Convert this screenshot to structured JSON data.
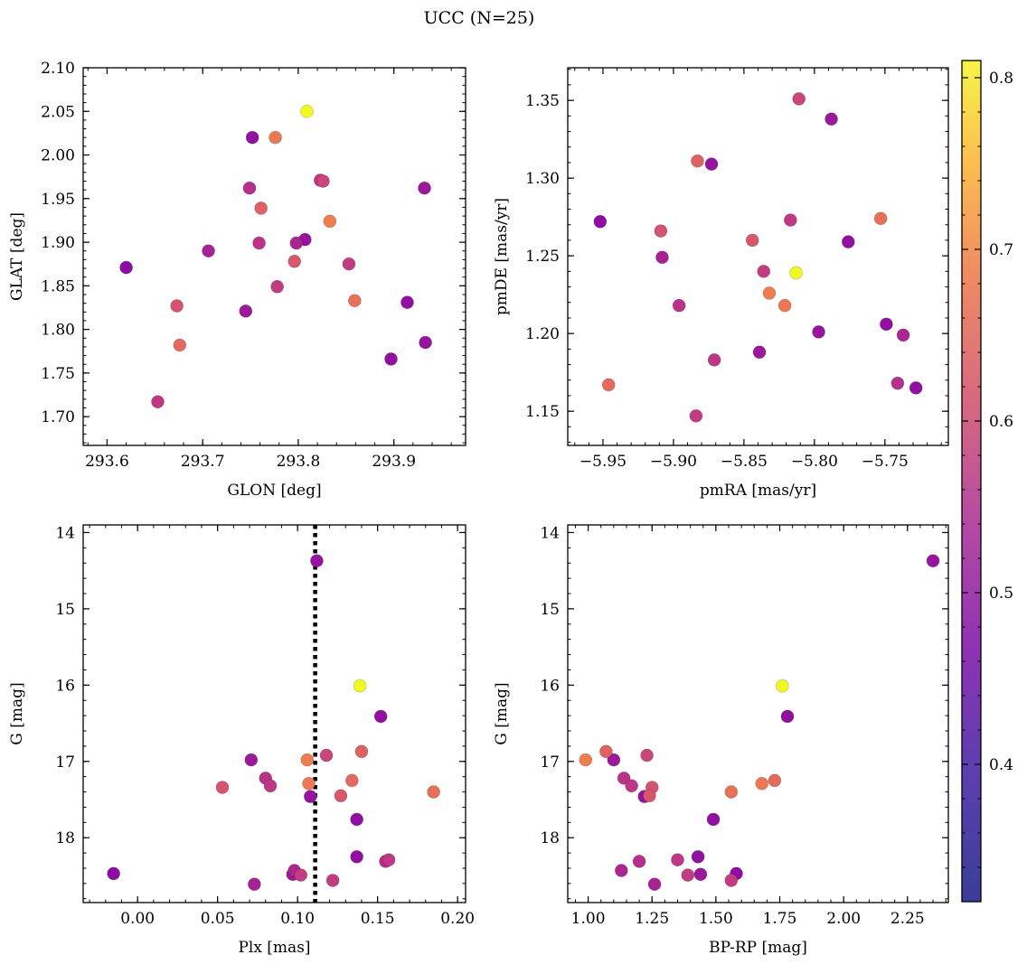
{
  "figure": {
    "title": "UCC (N=25)"
  },
  "chart_data": [
    {
      "type": "scatter",
      "xlabel": "GLON [deg]",
      "ylabel": "GLAT [deg]",
      "xlim": [
        293.575,
        293.975
      ],
      "ylim": [
        1.667,
        2.1
      ],
      "xticks": [
        293.6,
        293.7,
        293.8,
        293.9
      ],
      "xtick_labels": [
        "293.6",
        "293.7",
        "293.8",
        "293.9"
      ],
      "yticks": [
        1.7,
        1.75,
        1.8,
        1.85,
        1.9,
        1.95,
        2.0,
        2.05,
        2.1
      ],
      "ytick_labels": [
        "1.70",
        "1.75",
        "1.80",
        "1.85",
        "1.90",
        "1.95",
        "2.00",
        "2.05",
        "2.10"
      ],
      "y_inverted": false,
      "grid": false
    },
    {
      "type": "scatter",
      "xlabel": "pmRA [mas/yr]",
      "ylabel": "pmDE [mas/yr]",
      "xlim": [
        -5.975,
        -5.705
      ],
      "ylim": [
        1.128,
        1.371
      ],
      "xticks": [
        -5.95,
        -5.9,
        -5.85,
        -5.8,
        -5.75
      ],
      "xtick_labels": [
        "−5.95",
        "−5.90",
        "−5.85",
        "−5.80",
        "−5.75"
      ],
      "yticks": [
        1.15,
        1.2,
        1.25,
        1.3,
        1.35
      ],
      "ytick_labels": [
        "1.15",
        "1.20",
        "1.25",
        "1.30",
        "1.35"
      ],
      "y_inverted": false,
      "grid": false
    },
    {
      "type": "scatter",
      "xlabel": "Plx [mas]",
      "ylabel": "G [mag]",
      "xlim": [
        -0.034,
        0.205
      ],
      "ylim": [
        18.85,
        13.9
      ],
      "xticks": [
        0.0,
        0.05,
        0.1,
        0.15,
        0.2
      ],
      "xtick_labels": [
        "0.00",
        "0.05",
        "0.10",
        "0.15",
        "0.20"
      ],
      "yticks": [
        14,
        15,
        16,
        17,
        18
      ],
      "ytick_labels": [
        "14",
        "15",
        "16",
        "17",
        "18"
      ],
      "y_inverted": true,
      "vline": {
        "x": 0.111,
        "style": "dotted",
        "color": "#000000"
      },
      "grid": false
    },
    {
      "type": "scatter",
      "xlabel": "BP-RP [mag]",
      "ylabel": "G [mag]",
      "xlim": [
        0.92,
        2.41
      ],
      "ylim": [
        18.85,
        13.9
      ],
      "xticks": [
        1.0,
        1.25,
        1.5,
        1.75,
        2.0,
        2.25
      ],
      "xtick_labels": [
        "1.00",
        "1.25",
        "1.50",
        "1.75",
        "2.00",
        "2.25"
      ],
      "yticks": [
        14,
        15,
        16,
        17,
        18
      ],
      "ytick_labels": [
        "14",
        "15",
        "16",
        "17",
        "18"
      ],
      "y_inverted": true,
      "grid": false
    }
  ],
  "stars": [
    {
      "glon": 293.62,
      "glat": 1.871,
      "pmra": -5.952,
      "pmde": 1.272,
      "plx": -0.015,
      "g": 18.47,
      "bprp": 1.58,
      "c": 0.35
    },
    {
      "glon": 293.653,
      "glat": 1.717,
      "pmra": -5.871,
      "pmde": 1.183,
      "plx": 0.083,
      "g": 17.32,
      "bprp": 1.17,
      "c": 0.45
    },
    {
      "glon": 293.673,
      "glat": 1.827,
      "pmra": -5.909,
      "pmde": 1.266,
      "plx": 0.053,
      "g": 17.34,
      "bprp": 1.25,
      "c": 0.51
    },
    {
      "glon": 293.676,
      "glat": 1.782,
      "pmra": -5.946,
      "pmde": 1.167,
      "plx": 0.134,
      "g": 17.25,
      "bprp": 1.73,
      "c": 0.56
    },
    {
      "glon": 293.706,
      "glat": 1.89,
      "pmra": -5.908,
      "pmde": 1.249,
      "plx": 0.073,
      "g": 18.61,
      "bprp": 1.26,
      "c": 0.4
    },
    {
      "glon": 293.745,
      "glat": 1.821,
      "pmra": -5.839,
      "pmde": 1.188,
      "plx": 0.071,
      "g": 16.98,
      "bprp": 1.1,
      "c": 0.38
    },
    {
      "glon": 293.749,
      "glat": 1.962,
      "pmra": -5.741,
      "pmde": 1.168,
      "plx": 0.155,
      "g": 18.31,
      "bprp": 1.2,
      "c": 0.43
    },
    {
      "glon": 293.752,
      "glat": 2.02,
      "pmra": -5.728,
      "pmde": 1.165,
      "plx": 0.137,
      "g": 17.76,
      "bprp": 1.49,
      "c": 0.36
    },
    {
      "glon": 293.759,
      "glat": 1.899,
      "pmra": -5.896,
      "pmde": 1.218,
      "plx": 0.08,
      "g": 17.22,
      "bprp": 1.14,
      "c": 0.44
    },
    {
      "glon": 293.761,
      "glat": 1.939,
      "pmra": -5.883,
      "pmde": 1.311,
      "plx": 0.14,
      "g": 16.87,
      "bprp": 1.07,
      "c": 0.54
    },
    {
      "glon": 293.776,
      "glat": 2.02,
      "pmra": -5.821,
      "pmde": 1.218,
      "plx": 0.107,
      "g": 17.29,
      "bprp": 1.68,
      "c": 0.59
    },
    {
      "glon": 293.778,
      "glat": 1.849,
      "pmra": -5.836,
      "pmde": 1.24,
      "plx": 0.102,
      "g": 18.49,
      "bprp": 1.39,
      "c": 0.46
    },
    {
      "glon": 293.796,
      "glat": 1.878,
      "pmra": -5.844,
      "pmde": 1.26,
      "plx": 0.127,
      "g": 17.45,
      "bprp": 1.24,
      "c": 0.52
    },
    {
      "glon": 293.798,
      "glat": 1.899,
      "pmra": -5.737,
      "pmde": 1.199,
      "plx": 0.098,
      "g": 18.43,
      "bprp": 1.13,
      "c": 0.41
    },
    {
      "glon": 293.807,
      "glat": 1.903,
      "pmra": -5.797,
      "pmde": 1.201,
      "plx": 0.108,
      "g": 17.46,
      "bprp": 1.22,
      "c": 0.37
    },
    {
      "glon": 293.809,
      "glat": 2.05,
      "pmra": -5.813,
      "pmde": 1.239,
      "plx": 0.139,
      "g": 16.01,
      "bprp": 1.76,
      "c": 0.81
    },
    {
      "glon": 293.823,
      "glat": 1.971,
      "pmra": -5.817,
      "pmde": 1.273,
      "plx": 0.157,
      "g": 18.29,
      "bprp": 1.35,
      "c": 0.45
    },
    {
      "glon": 293.826,
      "glat": 1.97,
      "pmra": -5.811,
      "pmde": 1.351,
      "plx": 0.118,
      "g": 16.92,
      "bprp": 1.23,
      "c": 0.48
    },
    {
      "glon": 293.833,
      "glat": 1.924,
      "pmra": -5.832,
      "pmde": 1.226,
      "plx": 0.106,
      "g": 16.98,
      "bprp": 0.99,
      "c": 0.6
    },
    {
      "glon": 293.853,
      "glat": 1.875,
      "pmra": -5.884,
      "pmde": 1.147,
      "plx": 0.122,
      "g": 18.56,
      "bprp": 1.56,
      "c": 0.46
    },
    {
      "glon": 293.859,
      "glat": 1.833,
      "pmra": -5.753,
      "pmde": 1.274,
      "plx": 0.185,
      "g": 17.4,
      "bprp": 1.56,
      "c": 0.57
    },
    {
      "glon": 293.897,
      "glat": 1.766,
      "pmra": -5.749,
      "pmde": 1.206,
      "plx": 0.137,
      "g": 18.25,
      "bprp": 1.43,
      "c": 0.36
    },
    {
      "glon": 293.914,
      "glat": 1.831,
      "pmra": -5.776,
      "pmde": 1.259,
      "plx": 0.152,
      "g": 16.41,
      "bprp": 1.78,
      "c": 0.36
    },
    {
      "glon": 293.933,
      "glat": 1.785,
      "pmra": -5.873,
      "pmde": 1.309,
      "plx": 0.112,
      "g": 14.37,
      "bprp": 2.35,
      "c": 0.37
    },
    {
      "glon": 293.932,
      "glat": 1.962,
      "pmra": -5.788,
      "pmde": 1.338,
      "plx": 0.097,
      "g": 18.48,
      "bprp": 1.44,
      "c": 0.38
    }
  ],
  "colorbar": {
    "colormap": "plasma",
    "range": [
      0.32,
      0.81
    ],
    "ticks": [
      0.4,
      0.5,
      0.6,
      0.7,
      0.8
    ],
    "tick_labels": [
      "0.4",
      "0.5",
      "0.6",
      "0.7",
      "0.8"
    ]
  }
}
